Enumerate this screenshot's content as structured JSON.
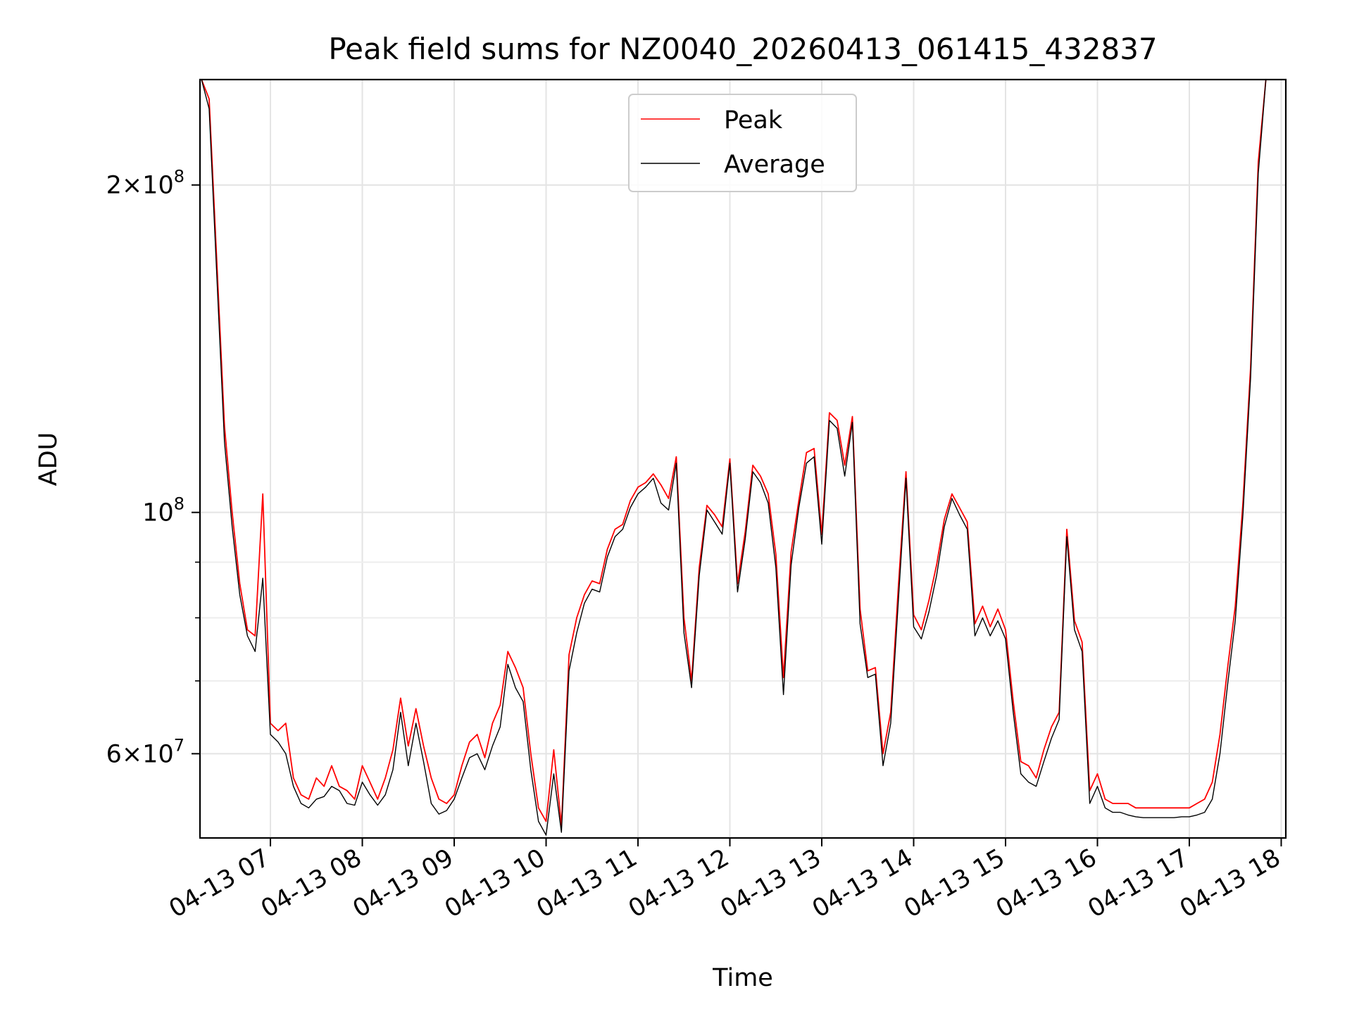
{
  "chart_data": {
    "type": "line",
    "title": "Peak field sums for NZ0040_20260413_061415_432837",
    "xlabel": "Time",
    "ylabel": "ADU",
    "y_scale": "log",
    "ylim": [
      50200000,
      250000000
    ],
    "xlim": [
      "04-13 06:14",
      "04-13 18:03"
    ],
    "grid": true,
    "legend_position": "top-center",
    "x_ticks": [
      "04-13 07",
      "04-13 08",
      "04-13 09",
      "04-13 10",
      "04-13 11",
      "04-13 12",
      "04-13 13",
      "04-13 14",
      "04-13 15",
      "04-13 16",
      "04-13 17",
      "04-13 18"
    ],
    "y_major_ticks": [
      {
        "value": 60000000,
        "mantissa": "6",
        "exponent": "7"
      },
      {
        "value": 100000000,
        "mantissa": "",
        "exponent": "8"
      },
      {
        "value": 200000000,
        "mantissa": "2",
        "exponent": "8"
      }
    ],
    "y_minor_ticks": [
      70000000,
      80000000,
      90000000
    ],
    "times": [
      "04-13 06:15",
      "04-13 06:20",
      "04-13 06:25",
      "04-13 06:30",
      "04-13 06:35",
      "04-13 06:40",
      "04-13 06:45",
      "04-13 06:50",
      "04-13 06:55",
      "04-13 07:00",
      "04-13 07:05",
      "04-13 07:10",
      "04-13 07:15",
      "04-13 07:20",
      "04-13 07:25",
      "04-13 07:30",
      "04-13 07:35",
      "04-13 07:40",
      "04-13 07:45",
      "04-13 07:50",
      "04-13 07:55",
      "04-13 08:00",
      "04-13 08:05",
      "04-13 08:10",
      "04-13 08:15",
      "04-13 08:20",
      "04-13 08:25",
      "04-13 08:30",
      "04-13 08:35",
      "04-13 08:40",
      "04-13 08:45",
      "04-13 08:50",
      "04-13 08:55",
      "04-13 09:00",
      "04-13 09:05",
      "04-13 09:10",
      "04-13 09:15",
      "04-13 09:20",
      "04-13 09:25",
      "04-13 09:30",
      "04-13 09:35",
      "04-13 09:40",
      "04-13 09:45",
      "04-13 09:50",
      "04-13 09:55",
      "04-13 10:00",
      "04-13 10:05",
      "04-13 10:10",
      "04-13 10:15",
      "04-13 10:20",
      "04-13 10:25",
      "04-13 10:30",
      "04-13 10:35",
      "04-13 10:40",
      "04-13 10:45",
      "04-13 10:50",
      "04-13 10:55",
      "04-13 11:00",
      "04-13 11:05",
      "04-13 11:10",
      "04-13 11:15",
      "04-13 11:20",
      "04-13 11:25",
      "04-13 11:30",
      "04-13 11:35",
      "04-13 11:40",
      "04-13 11:45",
      "04-13 11:50",
      "04-13 11:55",
      "04-13 12:00",
      "04-13 12:05",
      "04-13 12:10",
      "04-13 12:15",
      "04-13 12:20",
      "04-13 12:25",
      "04-13 12:30",
      "04-13 12:35",
      "04-13 12:40",
      "04-13 12:45",
      "04-13 12:50",
      "04-13 12:55",
      "04-13 13:00",
      "04-13 13:05",
      "04-13 13:10",
      "04-13 13:15",
      "04-13 13:20",
      "04-13 13:25",
      "04-13 13:30",
      "04-13 13:35",
      "04-13 13:40",
      "04-13 13:45",
      "04-13 13:50",
      "04-13 13:55",
      "04-13 14:00",
      "04-13 14:05",
      "04-13 14:10",
      "04-13 14:15",
      "04-13 14:20",
      "04-13 14:25",
      "04-13 14:30",
      "04-13 14:35",
      "04-13 14:40",
      "04-13 14:45",
      "04-13 14:50",
      "04-13 14:55",
      "04-13 15:00",
      "04-13 15:05",
      "04-13 15:10",
      "04-13 15:15",
      "04-13 15:20",
      "04-13 15:25",
      "04-13 15:30",
      "04-13 15:35",
      "04-13 15:40",
      "04-13 15:45",
      "04-13 15:50",
      "04-13 15:55",
      "04-13 16:00",
      "04-13 16:05",
      "04-13 16:10",
      "04-13 16:15",
      "04-13 16:20",
      "04-13 16:25",
      "04-13 16:30",
      "04-13 16:35",
      "04-13 16:40",
      "04-13 16:45",
      "04-13 16:50",
      "04-13 16:55",
      "04-13 17:00",
      "04-13 17:05",
      "04-13 17:10",
      "04-13 17:15",
      "04-13 17:20",
      "04-13 17:25",
      "04-13 17:30",
      "04-13 17:35",
      "04-13 17:40",
      "04-13 17:45",
      "04-13 17:50",
      "04-13 17:55",
      "04-13 18:00"
    ],
    "series": [
      {
        "name": "Peak",
        "color": "#ff0000",
        "values": [
          250000000,
          240000000,
          170000000,
          120000000,
          100000000,
          86000000,
          78000000,
          77000000,
          104000000,
          64000000,
          63000000,
          64000000,
          57000000,
          55000000,
          54500000,
          57000000,
          56000000,
          58500000,
          56000000,
          55500000,
          54500000,
          58500000,
          56500000,
          54500000,
          57000000,
          60500000,
          67500000,
          61000000,
          66000000,
          61000000,
          57000000,
          54500000,
          54000000,
          55000000,
          58500000,
          61500000,
          62500000,
          59500000,
          64000000,
          66500000,
          74500000,
          72000000,
          69000000,
          60000000,
          53500000,
          52000000,
          60500000,
          51500000,
          74000000,
          80000000,
          84000000,
          86500000,
          86000000,
          92500000,
          96500000,
          97500000,
          102500000,
          105500000,
          106500000,
          108500000,
          106000000,
          103000000,
          112500000,
          80000000,
          70000000,
          89000000,
          101500000,
          99500000,
          97000000,
          112000000,
          86000000,
          96000000,
          110500000,
          108000000,
          104000000,
          91500000,
          70500000,
          92000000,
          102500000,
          113500000,
          114500000,
          95500000,
          123500000,
          121500000,
          110500000,
          122500000,
          81500000,
          71500000,
          72000000,
          60000000,
          65500000,
          85500000,
          109000000,
          80500000,
          78000000,
          83000000,
          89500000,
          98500000,
          104000000,
          101000000,
          98000000,
          79000000,
          82000000,
          78500000,
          81500000,
          78000000,
          67000000,
          59000000,
          58500000,
          57000000,
          60500000,
          63500000,
          65500000,
          96500000,
          79500000,
          76000000,
          55500000,
          57500000,
          54500000,
          54000000,
          54000000,
          54000000,
          53500000,
          53500000,
          53500000,
          53500000,
          53500000,
          53500000,
          53500000,
          53500000,
          54000000,
          54500000,
          56500000,
          62500000,
          72000000,
          82000000,
          102000000,
          136000000,
          210000000,
          250000000
        ]
      },
      {
        "name": "Average",
        "color": "#000000",
        "values": [
          250000000,
          235000000,
          165000000,
          116000000,
          97000000,
          84000000,
          77000000,
          74500000,
          87000000,
          62500000,
          61500000,
          60000000,
          56000000,
          54000000,
          53500000,
          54500000,
          54800000,
          56000000,
          55500000,
          54000000,
          53800000,
          56500000,
          55000000,
          53800000,
          55000000,
          58000000,
          65500000,
          58500000,
          64000000,
          59000000,
          54000000,
          52800000,
          53200000,
          54500000,
          57000000,
          59500000,
          60000000,
          58000000,
          61000000,
          63500000,
          72500000,
          69000000,
          67000000,
          58000000,
          52000000,
          50500000,
          57500000,
          50800000,
          71500000,
          77500000,
          82500000,
          85000000,
          84500000,
          91000000,
          95000000,
          96500000,
          101000000,
          104000000,
          105500000,
          107500000,
          102000000,
          100500000,
          111000000,
          77500000,
          69000000,
          87500000,
          100500000,
          98000000,
          95500000,
          111000000,
          84500000,
          94500000,
          109000000,
          106500000,
          102000000,
          89000000,
          68000000,
          89500000,
          101000000,
          111000000,
          112500000,
          93500000,
          121500000,
          119500000,
          108000000,
          121000000,
          79000000,
          70500000,
          71000000,
          58500000,
          64000000,
          83000000,
          107500000,
          78500000,
          76500000,
          81000000,
          87500000,
          97000000,
          103000000,
          99500000,
          96500000,
          77000000,
          80000000,
          77000000,
          79500000,
          76500000,
          65500000,
          57500000,
          56500000,
          56000000,
          59000000,
          62000000,
          64500000,
          95000000,
          78000000,
          74500000,
          54000000,
          56000000,
          53500000,
          53000000,
          53000000,
          52700000,
          52500000,
          52400000,
          52400000,
          52400000,
          52400000,
          52400000,
          52500000,
          52500000,
          52700000,
          53000000,
          54500000,
          60000000,
          69500000,
          79500000,
          99500000,
          133000000,
          205000000,
          250000000
        ]
      }
    ]
  }
}
